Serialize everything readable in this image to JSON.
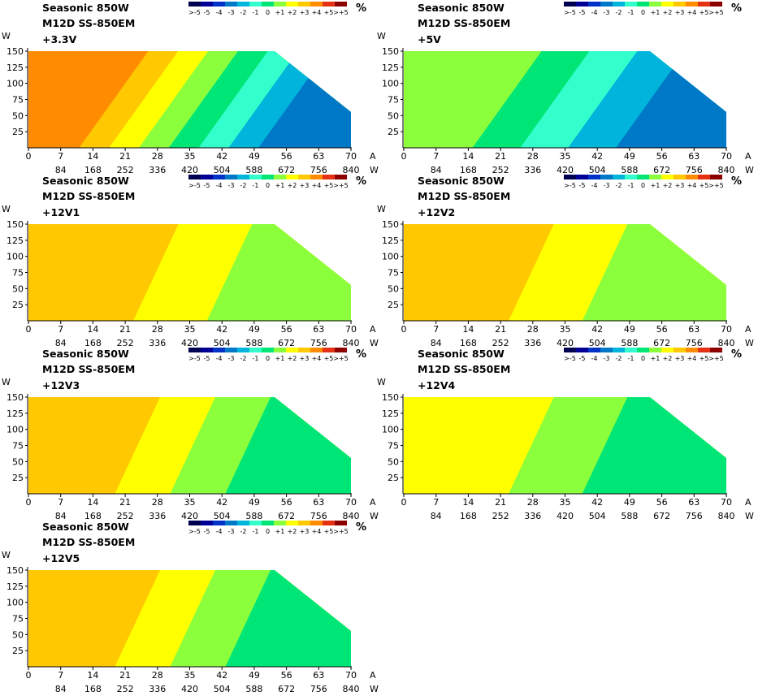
{
  "legend": {
    "labels": [
      ">-5",
      "-5",
      "-4",
      "-3",
      "-2",
      "-1",
      "0",
      "+1",
      "+2",
      "+3",
      "+4",
      "+5",
      ">+5"
    ],
    "colors": [
      "#000050",
      "#000096",
      "#0032c8",
      "#0078c8",
      "#00b4dc",
      "#33ffcc",
      "#00e676",
      "#8cff3c",
      "#ffff00",
      "#ffc800",
      "#ff8c00",
      "#e63214",
      "#8c0000"
    ],
    "unit": "%"
  },
  "axes": {
    "x_unit": "A",
    "x2_unit": "W",
    "y_unit": "W",
    "x_ticks": [
      0,
      7,
      14,
      21,
      28,
      35,
      42,
      49,
      56,
      63,
      70
    ],
    "x2_ticks": [
      84,
      168,
      252,
      336,
      420,
      504,
      588,
      672,
      756,
      840
    ],
    "y_ticks": [
      25,
      50,
      75,
      100,
      125,
      150
    ]
  },
  "chart_data": [
    {
      "type": "heatmap",
      "title": "Seasonic 850W",
      "subtitle": "M12D SS-850EM",
      "rail": "+3.3V",
      "x_label": "A",
      "y_label": "W",
      "xlim": [
        0,
        70
      ],
      "ylim": [
        0,
        150
      ],
      "bands": [
        {
          "range": "+4",
          "region": "near origin"
        },
        {
          "range": "+3",
          "region": "low load"
        },
        {
          "range": "+2",
          "region": "low-mid load"
        },
        {
          "range": "+1",
          "region": "mid load"
        },
        {
          "range": "0",
          "region": "mid-high load"
        },
        {
          "range": "-1",
          "region": "high load"
        },
        {
          "range": "-2",
          "region": "high load"
        },
        {
          "range": "-3",
          "region": "max load corner"
        }
      ]
    },
    {
      "type": "heatmap",
      "title": "Seasonic 850W",
      "subtitle": "M12D SS-850EM",
      "rail": "+5V",
      "x_label": "A",
      "y_label": "W",
      "xlim": [
        0,
        70
      ],
      "ylim": [
        0,
        150
      ],
      "bands": [
        {
          "range": "+1",
          "region": "low load"
        },
        {
          "range": "0",
          "region": "low-mid load"
        },
        {
          "range": "-1",
          "region": "mid load"
        },
        {
          "range": "-2",
          "region": "high load"
        },
        {
          "range": "-3",
          "region": "max load corner"
        }
      ]
    },
    {
      "type": "heatmap",
      "title": "Seasonic 850W",
      "subtitle": "M12D SS-850EM",
      "rail": "+12V1",
      "x_label": "A",
      "y_label": "W",
      "xlim": [
        0,
        70
      ],
      "ylim": [
        0,
        150
      ],
      "bands": [
        {
          "range": "+3",
          "region": "near origin"
        },
        {
          "range": "+2",
          "region": "low-mid load"
        },
        {
          "range": "+1",
          "region": "high load"
        }
      ]
    },
    {
      "type": "heatmap",
      "title": "Seasonic 850W",
      "subtitle": "M12D SS-850EM",
      "rail": "+12V2",
      "x_label": "A",
      "y_label": "W",
      "xlim": [
        0,
        70
      ],
      "ylim": [
        0,
        150
      ],
      "bands": [
        {
          "range": "+3",
          "region": "near origin"
        },
        {
          "range": "+2",
          "region": "low-mid load"
        },
        {
          "range": "+1",
          "region": "high load"
        }
      ]
    },
    {
      "type": "heatmap",
      "title": "Seasonic 850W",
      "subtitle": "M12D SS-850EM",
      "rail": "+12V3",
      "x_label": "A",
      "y_label": "W",
      "xlim": [
        0,
        70
      ],
      "ylim": [
        0,
        150
      ],
      "bands": [
        {
          "range": "+3",
          "region": "near origin"
        },
        {
          "range": "+2",
          "region": "low-mid load"
        },
        {
          "range": "+1",
          "region": "high load"
        },
        {
          "range": "0",
          "region": "max load corner"
        }
      ]
    },
    {
      "type": "heatmap",
      "title": "Seasonic 850W",
      "subtitle": "M12D SS-850EM",
      "rail": "+12V4",
      "x_label": "A",
      "y_label": "W",
      "xlim": [
        0,
        70
      ],
      "ylim": [
        0,
        150
      ],
      "bands": [
        {
          "range": "+2",
          "region": "low-mid load"
        },
        {
          "range": "+1",
          "region": "mid-high load"
        },
        {
          "range": "0",
          "region": "max load corner"
        }
      ]
    },
    {
      "type": "heatmap",
      "title": "Seasonic 850W",
      "subtitle": "M12D SS-850EM",
      "rail": "+12V5",
      "x_label": "A",
      "y_label": "W",
      "xlim": [
        0,
        70
      ],
      "ylim": [
        0,
        150
      ],
      "bands": [
        {
          "range": "+3",
          "region": "near origin"
        },
        {
          "range": "+2",
          "region": "low-mid load"
        },
        {
          "range": "+1",
          "region": "high load"
        },
        {
          "range": "0",
          "region": "max load corner"
        }
      ]
    }
  ]
}
